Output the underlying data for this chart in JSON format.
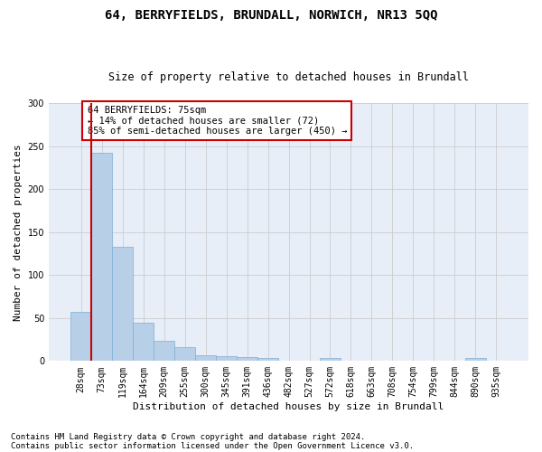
{
  "title1": "64, BERRYFIELDS, BRUNDALL, NORWICH, NR13 5QQ",
  "title2": "Size of property relative to detached houses in Brundall",
  "xlabel": "Distribution of detached houses by size in Brundall",
  "ylabel": "Number of detached properties",
  "categories": [
    "28sqm",
    "73sqm",
    "119sqm",
    "164sqm",
    "209sqm",
    "255sqm",
    "300sqm",
    "345sqm",
    "391sqm",
    "436sqm",
    "482sqm",
    "527sqm",
    "572sqm",
    "618sqm",
    "663sqm",
    "708sqm",
    "754sqm",
    "799sqm",
    "844sqm",
    "890sqm",
    "935sqm"
  ],
  "values": [
    57,
    242,
    133,
    44,
    23,
    16,
    7,
    6,
    5,
    3,
    0,
    0,
    3,
    0,
    0,
    0,
    0,
    0,
    0,
    3,
    0
  ],
  "bar_color": "#b8cfe8",
  "bar_edge_color": "#7bafd4",
  "vline_color": "#cc0000",
  "annotation_text": "64 BERRYFIELDS: 75sqm\n← 14% of detached houses are smaller (72)\n85% of semi-detached houses are larger (450) →",
  "annotation_box_color": "#ffffff",
  "annotation_box_edge": "#cc0000",
  "ylim": [
    0,
    300
  ],
  "yticks": [
    0,
    50,
    100,
    150,
    200,
    250,
    300
  ],
  "grid_color": "#cccccc",
  "bg_color": "#e8eef8",
  "footer1": "Contains HM Land Registry data © Crown copyright and database right 2024.",
  "footer2": "Contains public sector information licensed under the Open Government Licence v3.0.",
  "title1_fontsize": 10,
  "title2_fontsize": 8.5,
  "label_fontsize": 8,
  "tick_fontsize": 7,
  "annotation_fontsize": 7.5,
  "footer_fontsize": 6.5
}
